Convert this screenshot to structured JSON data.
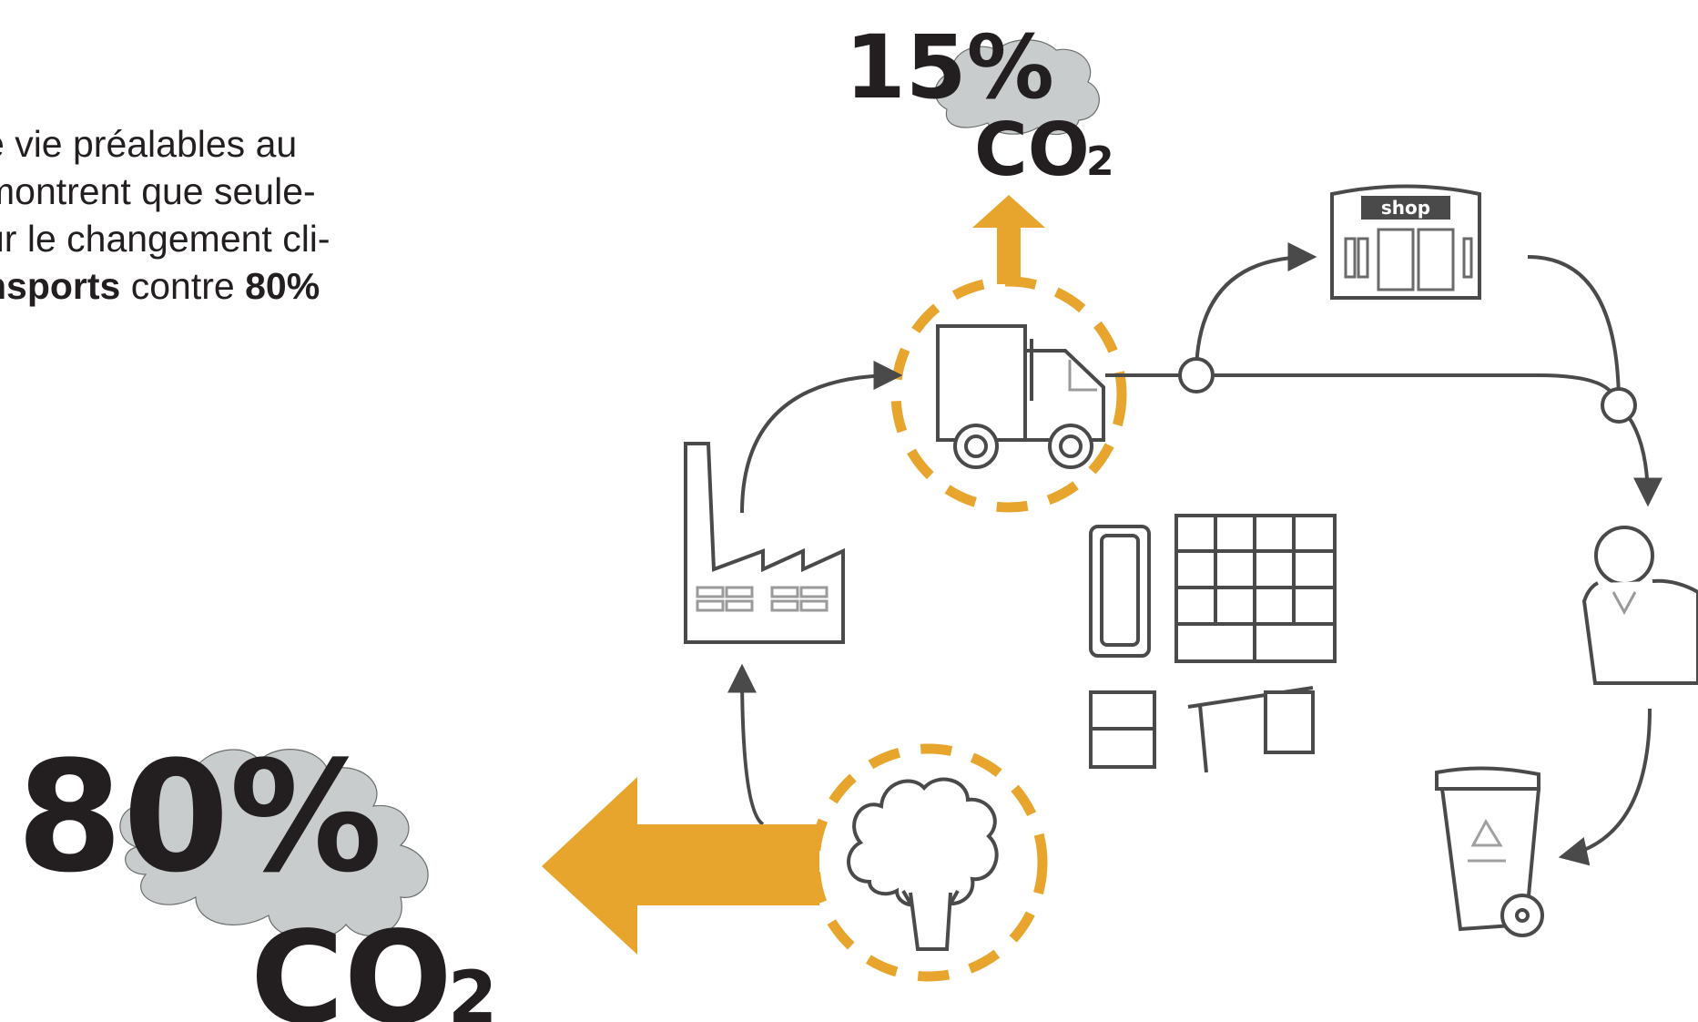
{
  "intro_text": {
    "line1": "e vie préalables au",
    "line2": "montrent que seule-",
    "line3": "ur le changement cli-",
    "line4_bold_a": "nsports",
    "line4_mid": " contre ",
    "line4_bold_b": "80%",
    "line5": "."
  },
  "transport_emission": {
    "percent": "15%",
    "gas": "CO",
    "subscript": "2"
  },
  "material_emission": {
    "percent": "80%",
    "gas": "CO",
    "subscript": "2"
  },
  "shop_sign": "shop",
  "colors": {
    "accent_orange": "#e8a52d",
    "cloud_grey": "#c8cccc",
    "line_grey": "#4a4a4a",
    "text_dark": "#231f20"
  },
  "icons": [
    "factory-icon",
    "truck-icon",
    "shop-icon",
    "person-icon",
    "furniture-icon",
    "tree-icon",
    "recycle-bin-icon",
    "cloud-icon"
  ]
}
